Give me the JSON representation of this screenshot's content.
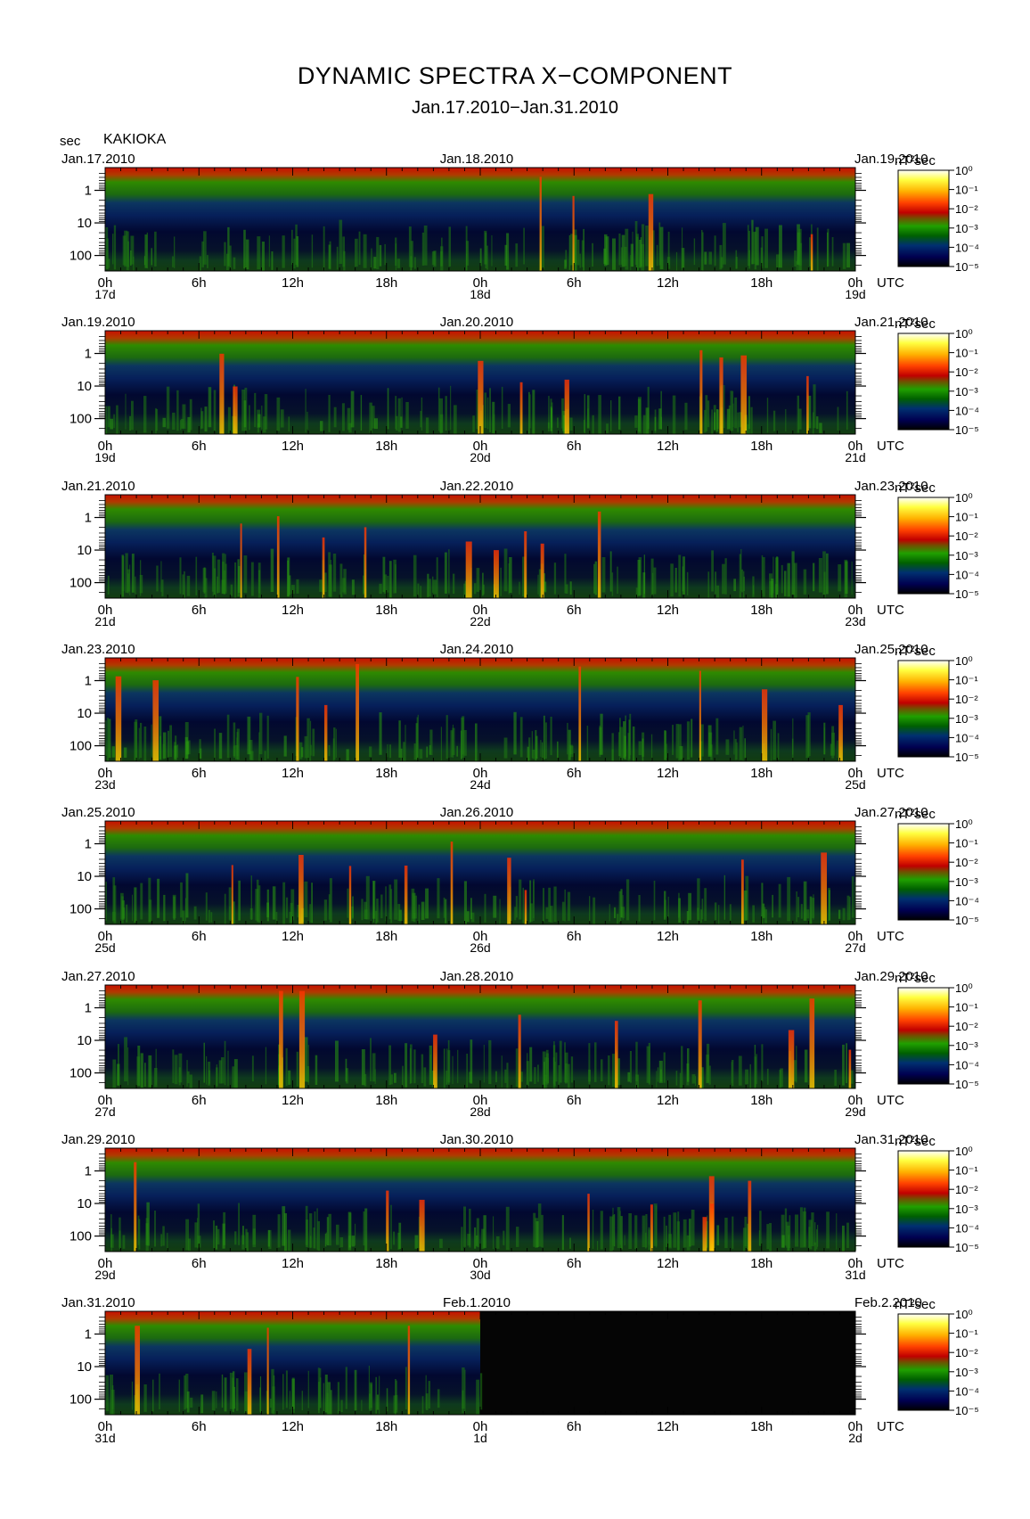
{
  "title": "DYNAMIC SPECTRA X−COMPONENT",
  "subtitle": "Jan.17.2010−Jan.31.2010",
  "y_unit": "sec",
  "station": "KAKIOKA",
  "colorbar_unit": "nT²sec",
  "utc_label": "UTC",
  "colorbar_colors": [
    "#ffffff",
    "#ffff40",
    "#ffb000",
    "#ff5000",
    "#d00000",
    "#a04000",
    "#2a8a00",
    "#00c000",
    "#006000",
    "#00306a",
    "#000050",
    "#000000"
  ],
  "chart_data": {
    "type": "heatmap",
    "x_tick_labels": [
      "0h",
      "6h",
      "12h",
      "18h",
      "0h",
      "6h",
      "12h",
      "18h",
      "0h"
    ],
    "y_tick_labels": [
      "1",
      "10",
      "100"
    ],
    "colorbar_ticks": [
      "10⁰",
      "10⁻¹",
      "10⁻²",
      "10⁻³",
      "10⁻⁴",
      "10⁻⁵"
    ],
    "panels": [
      {
        "date_left": "Jan.17.2010",
        "date_mid": "Jan.18.2010",
        "date_right": "Jan.19.2010",
        "day_labels": [
          "17d",
          "18d",
          "19d"
        ],
        "data_coverage": 1.0
      },
      {
        "date_left": "Jan.19.2010",
        "date_mid": "Jan.20.2010",
        "date_right": "Jan.21.2010",
        "day_labels": [
          "19d",
          "20d",
          "21d"
        ],
        "data_coverage": 1.0
      },
      {
        "date_left": "Jan.21.2010",
        "date_mid": "Jan.22.2010",
        "date_right": "Jan.23.2010",
        "day_labels": [
          "21d",
          "22d",
          "23d"
        ],
        "data_coverage": 1.0
      },
      {
        "date_left": "Jan.23.2010",
        "date_mid": "Jan.24.2010",
        "date_right": "Jan.25.2010",
        "day_labels": [
          "23d",
          "24d",
          "25d"
        ],
        "data_coverage": 1.0
      },
      {
        "date_left": "Jan.25.2010",
        "date_mid": "Jan.26.2010",
        "date_right": "Jan.27.2010",
        "day_labels": [
          "25d",
          "26d",
          "27d"
        ],
        "data_coverage": 1.0
      },
      {
        "date_left": "Jan.27.2010",
        "date_mid": "Jan.28.2010",
        "date_right": "Jan.29.2010",
        "day_labels": [
          "27d",
          "28d",
          "29d"
        ],
        "data_coverage": 1.0
      },
      {
        "date_left": "Jan.29.2010",
        "date_mid": "Jan.30.2010",
        "date_right": "Jan.31.2010",
        "day_labels": [
          "29d",
          "30d",
          "31d"
        ],
        "data_coverage": 1.0
      },
      {
        "date_left": "Jan.31.2010",
        "date_mid": "Feb.1.2010",
        "date_right": "Feb.2.2010",
        "day_labels": [
          "31d",
          "1d",
          "2d"
        ],
        "data_coverage": 0.5
      }
    ]
  }
}
